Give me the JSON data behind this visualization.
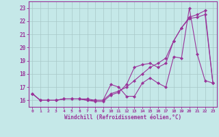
{
  "xlabel": "Windchill (Refroidissement éolien,°C)",
  "background_color": "#c5e8e8",
  "grid_color": "#a8c8c8",
  "line_color": "#993399",
  "xlim": [
    -0.5,
    23.5
  ],
  "ylim": [
    15.5,
    23.5
  ],
  "yticks": [
    16,
    17,
    18,
    19,
    20,
    21,
    22,
    23
  ],
  "xticks": [
    0,
    1,
    2,
    3,
    4,
    5,
    6,
    7,
    8,
    9,
    10,
    11,
    12,
    13,
    14,
    15,
    16,
    17,
    18,
    19,
    20,
    21,
    22,
    23
  ],
  "series1_x": [
    0,
    1,
    2,
    3,
    4,
    5,
    6,
    7,
    8,
    9,
    10,
    11,
    12,
    13,
    14,
    15,
    16,
    17,
    18,
    19,
    20,
    21,
    22,
    23
  ],
  "series1_y": [
    16.5,
    16.0,
    16.0,
    16.0,
    16.1,
    16.1,
    16.1,
    16.1,
    16.0,
    16.0,
    16.5,
    16.7,
    17.0,
    17.5,
    18.0,
    18.5,
    18.8,
    19.2,
    20.5,
    21.5,
    22.3,
    22.5,
    22.8,
    17.3
  ],
  "series2_x": [
    0,
    1,
    2,
    3,
    4,
    5,
    6,
    7,
    8,
    9,
    10,
    11,
    12,
    13,
    14,
    15,
    16,
    17,
    18,
    19,
    20,
    21,
    22,
    23
  ],
  "series2_y": [
    16.5,
    16.0,
    16.0,
    16.0,
    16.1,
    16.1,
    16.1,
    16.0,
    16.0,
    16.0,
    17.2,
    17.0,
    16.3,
    16.3,
    17.3,
    17.7,
    17.3,
    17.0,
    19.3,
    19.2,
    23.0,
    19.5,
    17.5,
    17.3
  ],
  "series3_x": [
    0,
    1,
    2,
    3,
    4,
    5,
    6,
    7,
    8,
    9,
    10,
    11,
    12,
    13,
    14,
    15,
    16,
    17,
    18,
    19,
    20,
    21,
    22,
    23
  ],
  "series3_y": [
    16.5,
    16.0,
    16.0,
    16.0,
    16.1,
    16.1,
    16.1,
    16.0,
    15.9,
    15.9,
    16.4,
    16.6,
    17.2,
    18.5,
    18.7,
    18.8,
    18.5,
    18.8,
    20.5,
    21.5,
    22.2,
    22.3,
    22.5,
    17.3
  ]
}
